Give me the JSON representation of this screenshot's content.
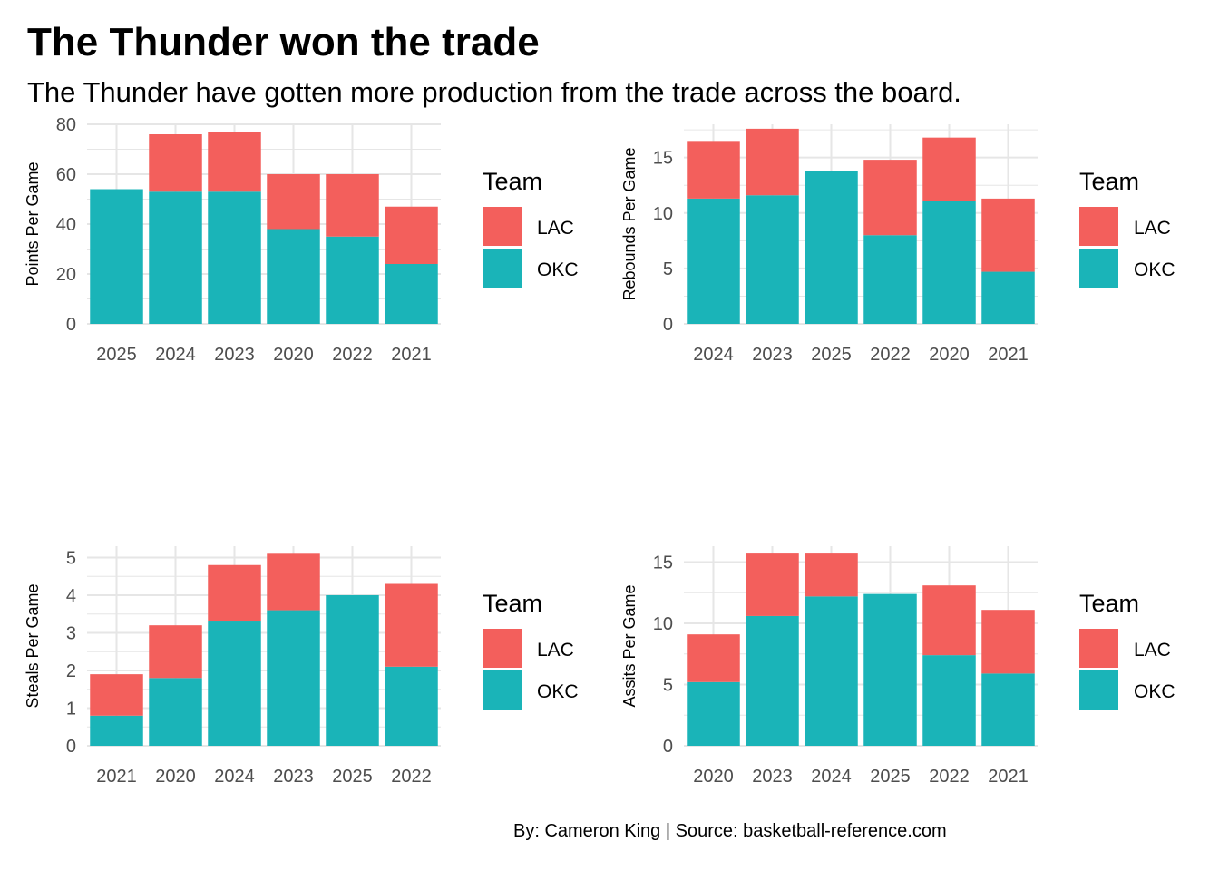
{
  "title": "The Thunder won the trade",
  "subtitle": "The Thunder have gotten more production from the trade across the board.",
  "caption": "By: Cameron King  |  Source: basketball-reference.com",
  "colors": {
    "LAC": "#F35F5C",
    "OKC": "#1AB4B8",
    "grid": "#E6E6E6"
  },
  "chart_data": [
    {
      "type": "bar",
      "stacked": true,
      "ylabel": "Points Per Game",
      "categories": [
        "2025",
        "2024",
        "2023",
        "2020",
        "2022",
        "2021"
      ],
      "series": [
        {
          "name": "OKC",
          "values": [
            54,
            53,
            53,
            38,
            35,
            24
          ]
        },
        {
          "name": "LAC",
          "values": [
            0,
            23,
            24,
            22,
            25,
            23
          ]
        }
      ],
      "ylim": [
        0,
        80
      ],
      "yticks": [
        0,
        20,
        40,
        60,
        80
      ],
      "legend": {
        "title": "Team",
        "entries": [
          "LAC",
          "OKC"
        ],
        "placement": "right"
      },
      "grid": true
    },
    {
      "type": "bar",
      "stacked": true,
      "ylabel": "Rebounds Per Game",
      "categories": [
        "2024",
        "2023",
        "2025",
        "2022",
        "2020",
        "2021"
      ],
      "series": [
        {
          "name": "OKC",
          "values": [
            11.3,
            11.6,
            13.8,
            8.0,
            11.1,
            4.7
          ]
        },
        {
          "name": "LAC",
          "values": [
            5.2,
            6.0,
            0,
            6.8,
            5.7,
            6.6
          ]
        }
      ],
      "ylim": [
        0,
        18
      ],
      "yticks": [
        0,
        5,
        10,
        15
      ],
      "legend": {
        "title": "Team",
        "entries": [
          "LAC",
          "OKC"
        ],
        "placement": "right"
      },
      "grid": true
    },
    {
      "type": "bar",
      "stacked": true,
      "ylabel": "Steals Per Game",
      "categories": [
        "2021",
        "2020",
        "2024",
        "2023",
        "2025",
        "2022"
      ],
      "series": [
        {
          "name": "OKC",
          "values": [
            0.8,
            1.8,
            3.3,
            3.6,
            4.0,
            2.1
          ]
        },
        {
          "name": "LAC",
          "values": [
            1.1,
            1.4,
            1.5,
            1.5,
            0,
            2.2
          ]
        }
      ],
      "ylim": [
        0,
        5.3
      ],
      "yticks": [
        0,
        1,
        2,
        3,
        4,
        5
      ],
      "legend": {
        "title": "Team",
        "entries": [
          "LAC",
          "OKC"
        ],
        "placement": "right"
      },
      "grid": true
    },
    {
      "type": "bar",
      "stacked": true,
      "ylabel": "Assits Per Game",
      "categories": [
        "2020",
        "2023",
        "2024",
        "2025",
        "2022",
        "2021"
      ],
      "series": [
        {
          "name": "OKC",
          "values": [
            5.2,
            10.6,
            12.2,
            12.4,
            7.4,
            5.9
          ]
        },
        {
          "name": "LAC",
          "values": [
            3.9,
            5.1,
            3.5,
            0,
            5.7,
            5.2
          ]
        }
      ],
      "ylim": [
        0,
        16.3
      ],
      "yticks": [
        0,
        5,
        10,
        15
      ],
      "legend": {
        "title": "Team",
        "entries": [
          "LAC",
          "OKC"
        ],
        "placement": "right"
      },
      "grid": true
    }
  ]
}
